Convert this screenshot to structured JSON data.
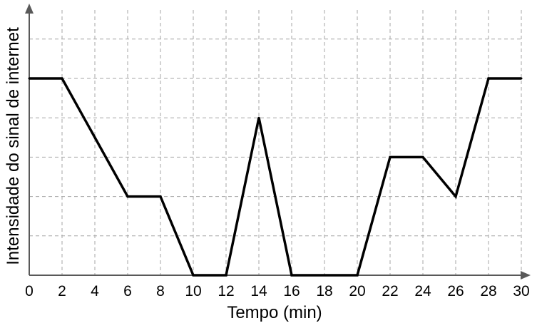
{
  "chart_data": {
    "type": "line",
    "title": "",
    "xlabel": "Tempo (min)",
    "ylabel": "Intensidade do sinal de internet",
    "x_ticks": [
      0,
      2,
      4,
      6,
      8,
      10,
      12,
      14,
      16,
      18,
      20,
      22,
      24,
      26,
      28,
      30
    ],
    "xlim": [
      0,
      30
    ],
    "ylim": [
      0,
      5
    ],
    "y_gridlines": [
      1,
      2,
      3,
      4,
      5
    ],
    "y_tick_labels_shown": false,
    "grid": "dashed",
    "legend": "none",
    "line_color": "#000000",
    "grid_color": "#a6a6a6",
    "series": [
      {
        "x": [
          0,
          2,
          6,
          8,
          10,
          12,
          14,
          16,
          20,
          22,
          24,
          26,
          28,
          30
        ],
        "y": [
          5,
          5,
          2,
          2,
          0,
          0,
          4,
          0,
          0,
          3,
          3,
          2,
          5,
          5
        ]
      }
    ]
  }
}
